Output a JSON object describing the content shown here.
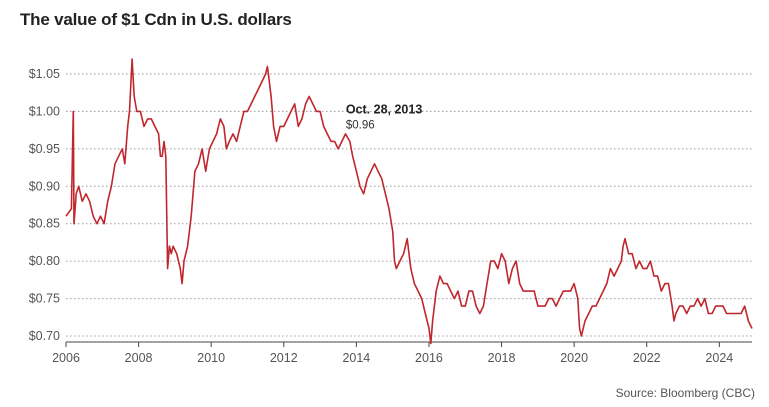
{
  "chart_data": {
    "type": "line",
    "title": "The value of $1 Cdn in U.S. dollars",
    "source": "Source: Bloomberg (CBC)",
    "xlabel": "",
    "ylabel": "",
    "xlim": [
      2006,
      2024.9
    ],
    "ylim": [
      0.7,
      1.05
    ],
    "x_ticks": [
      2006,
      2008,
      2010,
      2012,
      2014,
      2016,
      2018,
      2020,
      2022,
      2024
    ],
    "x_tick_labels": [
      "2006",
      "2008",
      "2010",
      "2012",
      "2014",
      "2016",
      "2018",
      "2020",
      "2022",
      "2024"
    ],
    "y_ticks": [
      0.7,
      0.75,
      0.8,
      0.85,
      0.9,
      0.95,
      1.0,
      1.05
    ],
    "y_tick_labels": [
      "$0.70",
      "$0.75",
      "$0.80",
      "$0.85",
      "$0.90",
      "$0.95",
      "$1.00",
      "$1.05"
    ],
    "grid": "horizontal dotted",
    "line_color": "#c0272d",
    "annotation": {
      "x": 2013.82,
      "y": 0.96,
      "title": "Oct. 28, 2013",
      "value": "$0.96"
    },
    "series": [
      {
        "x": [
          2006.0,
          2006.15,
          2006.2,
          2006.22,
          2006.28,
          2006.35,
          2006.45,
          2006.55,
          2006.65,
          2006.75,
          2006.85,
          2006.95,
          2007.05,
          2007.15,
          2007.25,
          2007.35,
          2007.45,
          2007.55,
          2007.62,
          2007.7,
          2007.75,
          2007.82,
          2007.88,
          2007.95,
          2008.05,
          2008.15,
          2008.25,
          2008.35,
          2008.45,
          2008.55,
          2008.6,
          2008.65,
          2008.7,
          2008.75,
          2008.8,
          2008.85,
          2008.9,
          2008.95,
          2009.05,
          2009.15,
          2009.2,
          2009.25,
          2009.35,
          2009.45,
          2009.55,
          2009.65,
          2009.75,
          2009.85,
          2009.95,
          2010.05,
          2010.15,
          2010.25,
          2010.35,
          2010.42,
          2010.5,
          2010.6,
          2010.7,
          2010.8,
          2010.9,
          2011.0,
          2011.1,
          2011.2,
          2011.3,
          2011.4,
          2011.5,
          2011.55,
          2011.6,
          2011.65,
          2011.72,
          2011.8,
          2011.9,
          2012.0,
          2012.1,
          2012.2,
          2012.3,
          2012.4,
          2012.5,
          2012.6,
          2012.7,
          2012.8,
          2012.9,
          2013.0,
          2013.1,
          2013.2,
          2013.3,
          2013.4,
          2013.5,
          2013.6,
          2013.7,
          2013.82,
          2013.9,
          2014.0,
          2014.1,
          2014.2,
          2014.3,
          2014.4,
          2014.5,
          2014.6,
          2014.7,
          2014.8,
          2014.9,
          2015.0,
          2015.05,
          2015.1,
          2015.2,
          2015.3,
          2015.4,
          2015.5,
          2015.6,
          2015.7,
          2015.8,
          2015.9,
          2016.0,
          2016.05,
          2016.1,
          2016.15,
          2016.2,
          2016.3,
          2016.4,
          2016.5,
          2016.6,
          2016.7,
          2016.8,
          2016.9,
          2017.0,
          2017.1,
          2017.2,
          2017.3,
          2017.4,
          2017.5,
          2017.6,
          2017.7,
          2017.8,
          2017.9,
          2018.0,
          2018.1,
          2018.2,
          2018.3,
          2018.4,
          2018.5,
          2018.6,
          2018.7,
          2018.8,
          2018.9,
          2019.0,
          2019.1,
          2019.2,
          2019.3,
          2019.4,
          2019.5,
          2019.6,
          2019.7,
          2019.8,
          2019.9,
          2020.0,
          2020.1,
          2020.15,
          2020.2,
          2020.3,
          2020.4,
          2020.5,
          2020.6,
          2020.7,
          2020.8,
          2020.9,
          2021.0,
          2021.1,
          2021.2,
          2021.3,
          2021.35,
          2021.4,
          2021.5,
          2021.6,
          2021.7,
          2021.8,
          2021.9,
          2022.0,
          2022.1,
          2022.2,
          2022.3,
          2022.4,
          2022.5,
          2022.6,
          2022.7,
          2022.75,
          2022.8,
          2022.9,
          2023.0,
          2023.1,
          2023.2,
          2023.3,
          2023.4,
          2023.5,
          2023.6,
          2023.7,
          2023.8,
          2023.9,
          2024.0,
          2024.1,
          2024.2,
          2024.3,
          2024.4,
          2024.5,
          2024.6,
          2024.7,
          2024.8,
          2024.9
        ],
        "y": [
          0.86,
          0.87,
          1.0,
          0.85,
          0.89,
          0.9,
          0.88,
          0.89,
          0.88,
          0.86,
          0.85,
          0.86,
          0.85,
          0.88,
          0.9,
          0.93,
          0.94,
          0.95,
          0.93,
          0.98,
          1.0,
          1.07,
          1.02,
          1.0,
          1.0,
          0.98,
          0.99,
          0.99,
          0.98,
          0.97,
          0.94,
          0.94,
          0.96,
          0.94,
          0.79,
          0.82,
          0.81,
          0.82,
          0.81,
          0.79,
          0.77,
          0.8,
          0.82,
          0.86,
          0.92,
          0.93,
          0.95,
          0.92,
          0.95,
          0.96,
          0.97,
          0.99,
          0.98,
          0.95,
          0.96,
          0.97,
          0.96,
          0.98,
          1.0,
          1.0,
          1.01,
          1.02,
          1.03,
          1.04,
          1.05,
          1.06,
          1.04,
          1.02,
          0.98,
          0.96,
          0.98,
          0.98,
          0.99,
          1.0,
          1.01,
          0.98,
          0.99,
          1.01,
          1.02,
          1.01,
          1.0,
          1.0,
          0.98,
          0.97,
          0.96,
          0.96,
          0.95,
          0.96,
          0.97,
          0.96,
          0.94,
          0.92,
          0.9,
          0.89,
          0.91,
          0.92,
          0.93,
          0.92,
          0.91,
          0.89,
          0.87,
          0.84,
          0.8,
          0.79,
          0.8,
          0.81,
          0.83,
          0.79,
          0.77,
          0.76,
          0.75,
          0.73,
          0.71,
          0.69,
          0.72,
          0.74,
          0.76,
          0.78,
          0.77,
          0.77,
          0.76,
          0.75,
          0.76,
          0.74,
          0.74,
          0.76,
          0.76,
          0.74,
          0.73,
          0.74,
          0.77,
          0.8,
          0.8,
          0.79,
          0.81,
          0.8,
          0.77,
          0.79,
          0.8,
          0.77,
          0.76,
          0.76,
          0.76,
          0.76,
          0.74,
          0.74,
          0.74,
          0.75,
          0.75,
          0.74,
          0.75,
          0.76,
          0.76,
          0.76,
          0.77,
          0.75,
          0.71,
          0.7,
          0.72,
          0.73,
          0.74,
          0.74,
          0.75,
          0.76,
          0.77,
          0.79,
          0.78,
          0.79,
          0.8,
          0.82,
          0.83,
          0.81,
          0.81,
          0.79,
          0.8,
          0.79,
          0.79,
          0.8,
          0.78,
          0.78,
          0.76,
          0.77,
          0.77,
          0.74,
          0.72,
          0.73,
          0.74,
          0.74,
          0.73,
          0.74,
          0.74,
          0.75,
          0.74,
          0.75,
          0.73,
          0.73,
          0.74,
          0.74,
          0.74,
          0.73,
          0.73,
          0.73,
          0.73,
          0.73,
          0.74,
          0.72,
          0.71
        ]
      }
    ]
  }
}
